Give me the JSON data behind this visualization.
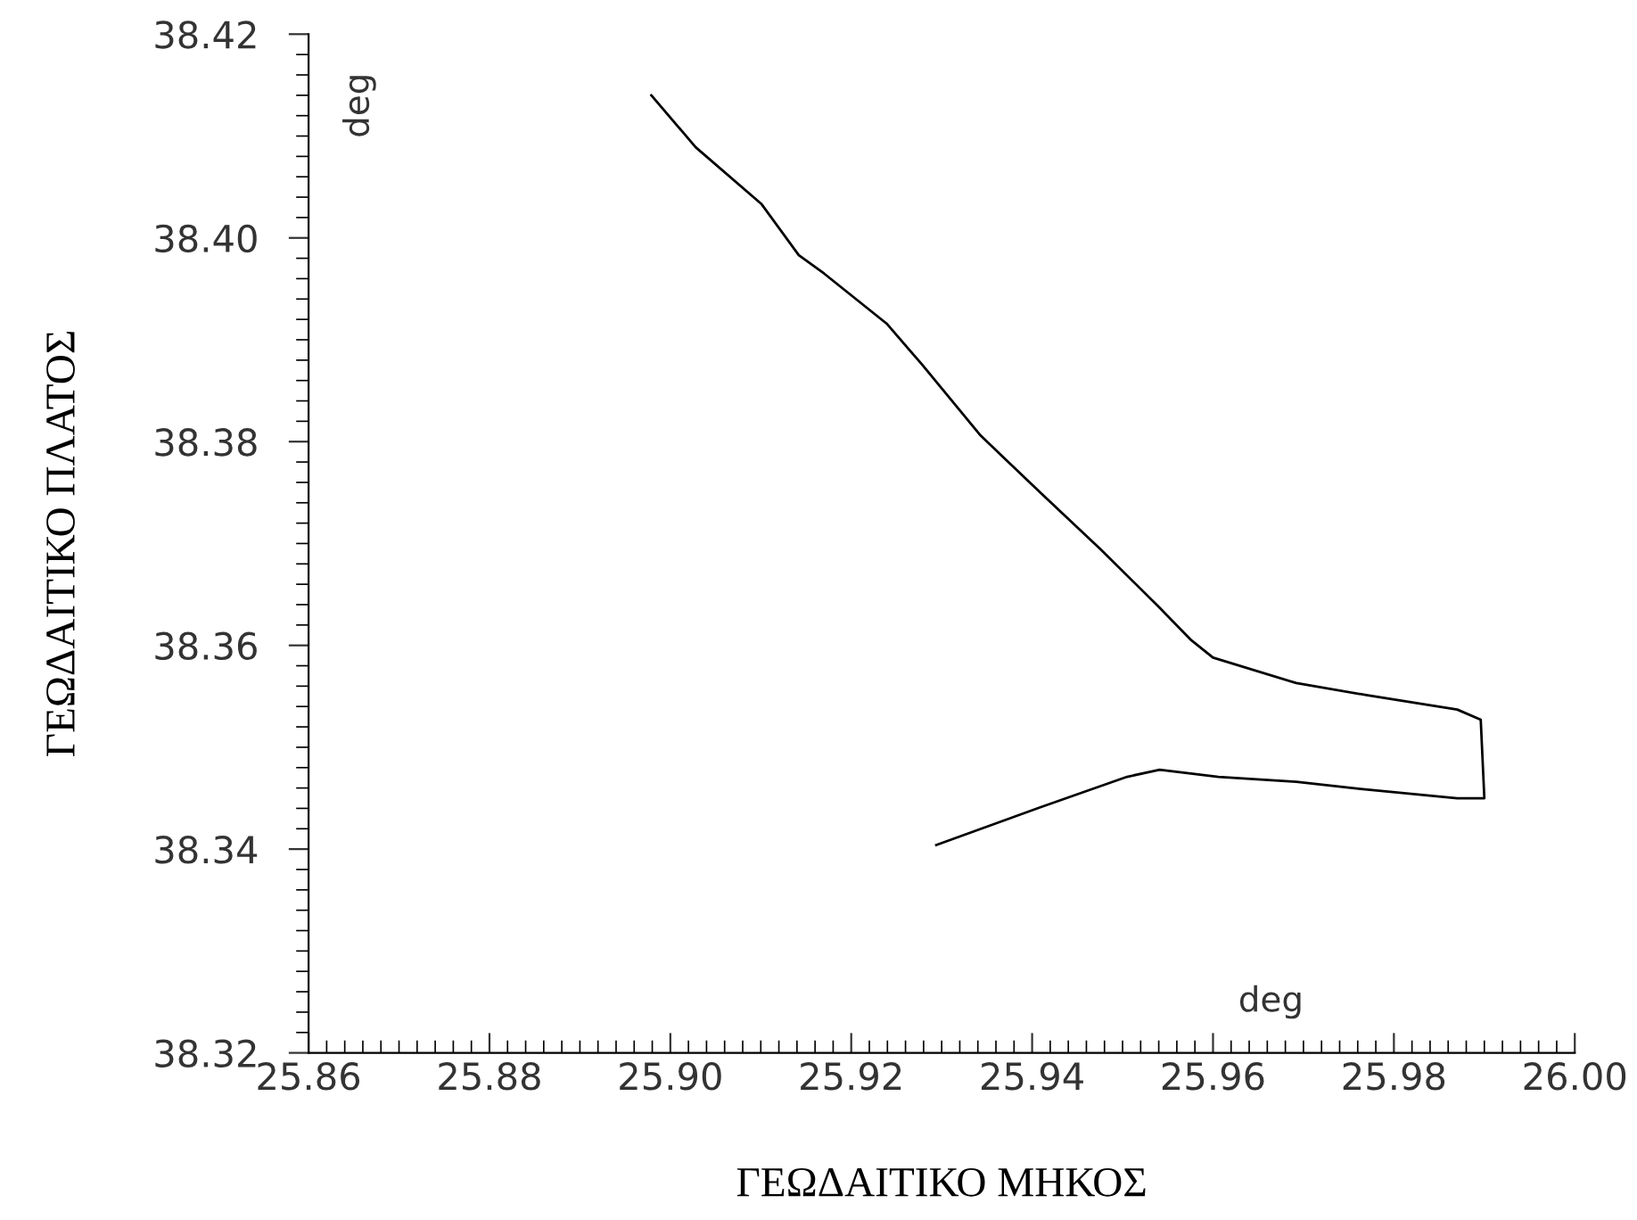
{
  "chart_data": {
    "type": "line",
    "xlabel": "ΓΕΩΔΑΙΤΙΚΟ ΜΗΚΟΣ",
    "ylabel": "ΓΕΩΔΑΙΤΙΚΟ ΠΛΑΤΟΣ",
    "annotations": [
      "deg",
      "deg"
    ],
    "xlim": [
      25.86,
      26.0
    ],
    "ylim": [
      38.32,
      38.42
    ],
    "xticks": [
      25.86,
      25.88,
      {
        "value": 25.9,
        "label": "25.90"
      },
      25.92,
      25.94,
      25.96,
      25.98,
      {
        "value": 26.0,
        "label": "26.00"
      }
    ],
    "yticks": [
      38.32,
      38.34,
      38.36,
      38.38,
      {
        "value": 38.4,
        "label": "38.40"
      },
      38.42
    ],
    "grid": false,
    "legend": false,
    "marker": "none",
    "line_style": "solid",
    "series": [
      {
        "color": "#000000",
        "x": [
          25.8979,
          25.9028,
          25.9101,
          25.9142,
          25.917,
          25.9239,
          25.9278,
          25.9343,
          25.9409,
          25.9476,
          25.9541,
          25.9576,
          25.96,
          25.9692,
          25.9771,
          25.987,
          25.9896,
          25.99,
          25.987,
          25.9763,
          25.9692,
          25.9606,
          25.9541,
          25.9505,
          25.9409,
          25.9294
        ],
        "values": [
          38.414,
          38.4089,
          38.4033,
          38.3983,
          38.3965,
          38.3916,
          38.3876,
          38.3806,
          38.375,
          38.3694,
          38.3637,
          38.3605,
          38.3588,
          38.3563,
          38.3551,
          38.3537,
          38.3527,
          38.345,
          38.345,
          38.3459,
          38.3466,
          38.3471,
          38.3478,
          38.3471,
          38.3441,
          38.3404
        ]
      }
    ]
  }
}
